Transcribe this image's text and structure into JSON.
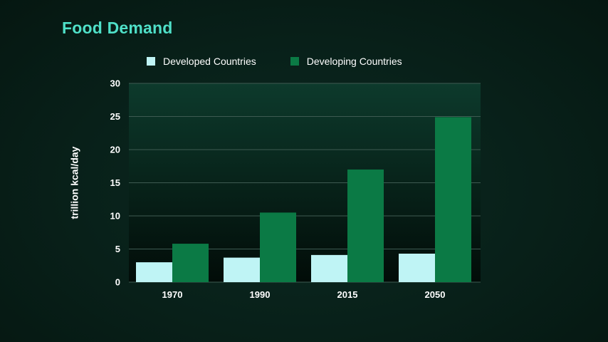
{
  "colors": {
    "title": "#4fe0c8",
    "developed": "#bff4f5",
    "developing": "#0b7a45",
    "gridline": "#3e5b52",
    "plot_top": "#0d3a2c",
    "plot_bottom": "#020c08"
  },
  "chart_data": {
    "type": "bar",
    "title": "Food Demand",
    "ylabel": "trillion kcal/day",
    "xlabel": "",
    "categories": [
      "1970",
      "1990",
      "2015",
      "2050"
    ],
    "series": [
      {
        "name": "Developed Countries",
        "values": [
          3.0,
          3.7,
          4.1,
          4.3
        ]
      },
      {
        "name": "Developing Countries",
        "values": [
          5.8,
          10.5,
          17.0,
          24.9
        ]
      }
    ],
    "ylim": [
      0,
      30
    ],
    "yticks": [
      "0",
      "5",
      "10",
      "15",
      "20",
      "25",
      "30"
    ],
    "grid": true,
    "legend": "top"
  }
}
